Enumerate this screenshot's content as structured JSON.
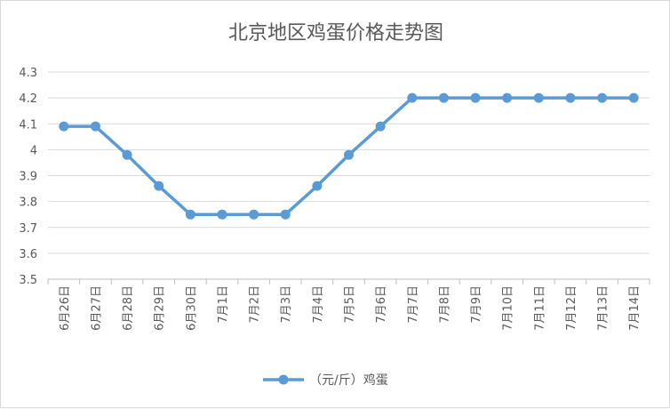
{
  "chart_data": {
    "type": "line",
    "title": "北京地区鸡蛋价格走势图",
    "categories": [
      "6月26日",
      "6月27日",
      "6月28日",
      "6月29日",
      "6月30日",
      "7月1日",
      "7月2日",
      "7月3日",
      "7月4日",
      "7月5日",
      "7月6日",
      "7月7日",
      "7月8日",
      "7月9日",
      "7月10日",
      "7月11日",
      "7月12日",
      "7月13日",
      "7月14日"
    ],
    "series": [
      {
        "name": "（元/斤）鸡蛋",
        "values": [
          4.09,
          4.09,
          3.98,
          3.86,
          3.75,
          3.75,
          3.75,
          3.75,
          3.86,
          3.98,
          4.09,
          4.2,
          4.2,
          4.2,
          4.2,
          4.2,
          4.2,
          4.2,
          4.2
        ]
      }
    ],
    "ylim": [
      3.5,
      4.3
    ],
    "yticks": [
      "3.5",
      "3.6",
      "3.7",
      "3.8",
      "3.9",
      "4",
      "4.1",
      "4.2",
      "4.3"
    ],
    "grid": true,
    "legend": "bottom",
    "color": "#5b9bd5"
  }
}
